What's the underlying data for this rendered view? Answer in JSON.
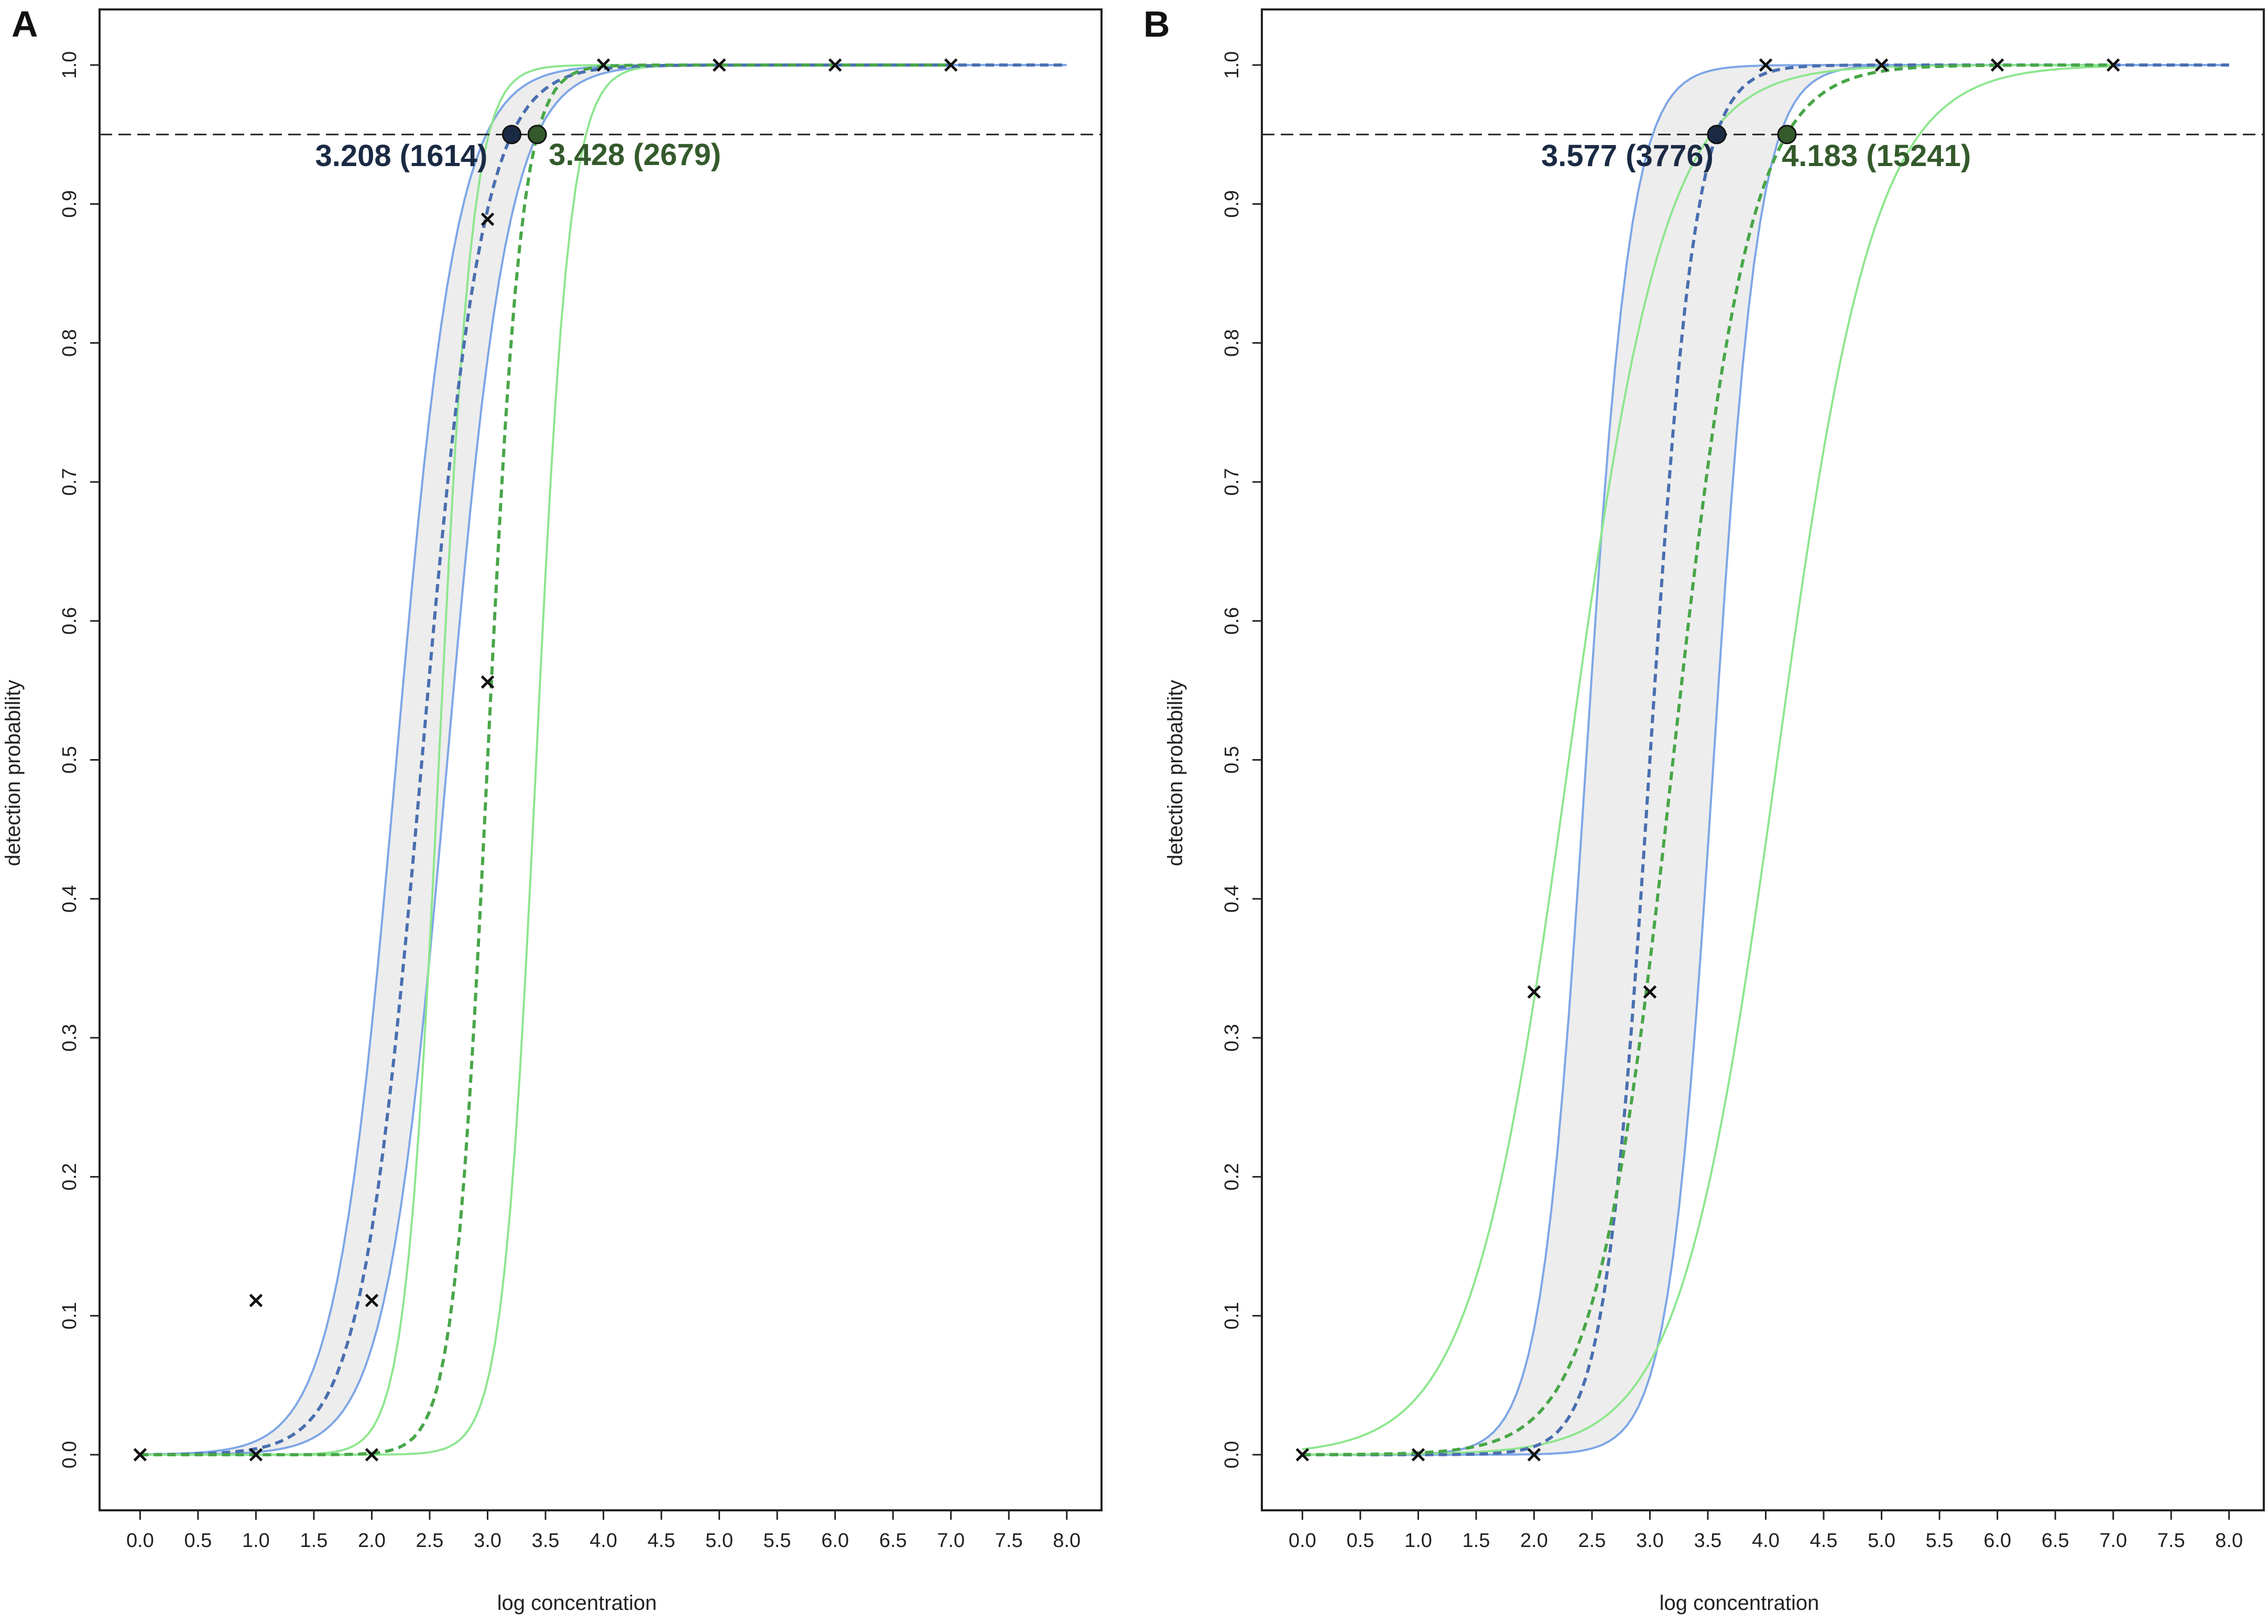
{
  "figure": {
    "colors": {
      "blue": "#7ea6e6",
      "blue_dark": "#4a6fb0",
      "green": "#8ee68e",
      "green_dark": "#48a648",
      "band_fill": "#ededed",
      "annot_blue": "#1b2a44",
      "annot_green": "#345a2c",
      "ref_line": "#222222"
    }
  },
  "chart_data": [
    {
      "type": "line",
      "panel_label": "A",
      "xlabel": "log concentration",
      "ylabel": "detection probability",
      "xlim": [
        -0.35,
        8.3
      ],
      "ylim": [
        -0.04,
        1.04
      ],
      "xticks": [
        "0.0",
        "0.5",
        "1.0",
        "1.5",
        "2.0",
        "2.5",
        "3.0",
        "3.5",
        "4.0",
        "4.5",
        "5.0",
        "5.5",
        "6.0",
        "6.5",
        "7.0",
        "7.5",
        "8.0"
      ],
      "yticks": [
        "0.0",
        "0.1",
        "0.2",
        "0.3",
        "0.4",
        "0.5",
        "0.6",
        "0.7",
        "0.8",
        "0.9",
        "1.0"
      ],
      "reference_line_y": 0.95,
      "observations": [
        {
          "x": 0,
          "y": 0.0
        },
        {
          "x": 1,
          "y": 0.111
        },
        {
          "x": 1,
          "y": 0.0
        },
        {
          "x": 2,
          "y": 0.111
        },
        {
          "x": 2,
          "y": 0.0
        },
        {
          "x": 3,
          "y": 0.889
        },
        {
          "x": 3,
          "y": 0.556
        },
        {
          "x": 4,
          "y": 1.0
        },
        {
          "x": 5,
          "y": 1.0
        },
        {
          "x": 6,
          "y": 1.0
        },
        {
          "x": 7,
          "y": 1.0
        }
      ],
      "series": [
        {
          "name": "blue model",
          "midpoint": 2.433,
          "steepness": 3.8,
          "x_range": [
            0,
            8
          ]
        },
        {
          "name": "green model",
          "midpoint": 3.0,
          "steepness": 6.86,
          "x_range": [
            0,
            7
          ]
        }
      ],
      "lod_points": [
        {
          "x": 3.208,
          "y": 0.95,
          "label": "3.208 (1614)",
          "series": "blue"
        },
        {
          "x": 3.428,
          "y": 0.95,
          "label": "3.428 (2679)",
          "series": "green"
        }
      ]
    },
    {
      "type": "line",
      "panel_label": "B",
      "xlabel": "log concentration",
      "ylabel": "detection probability",
      "xlim": [
        -0.35,
        8.3
      ],
      "ylim": [
        -0.04,
        1.04
      ],
      "xticks": [
        "0.0",
        "0.5",
        "1.0",
        "1.5",
        "2.0",
        "2.5",
        "3.0",
        "3.5",
        "4.0",
        "4.5",
        "5.0",
        "5.5",
        "6.0",
        "6.5",
        "7.0",
        "7.5",
        "8.0"
      ],
      "yticks": [
        "0.0",
        "0.1",
        "0.2",
        "0.3",
        "0.4",
        "0.5",
        "0.6",
        "0.7",
        "0.8",
        "0.9",
        "1.0"
      ],
      "reference_line_y": 0.95,
      "observations": [
        {
          "x": 0,
          "y": 0.0
        },
        {
          "x": 1,
          "y": 0.0
        },
        {
          "x": 2,
          "y": 0.333
        },
        {
          "x": 2,
          "y": 0.0
        },
        {
          "x": 3,
          "y": 0.333
        },
        {
          "x": 4,
          "y": 1.0
        },
        {
          "x": 5,
          "y": 1.0
        },
        {
          "x": 6,
          "y": 1.0
        },
        {
          "x": 7,
          "y": 1.0
        }
      ],
      "series": [
        {
          "name": "blue model",
          "midpoint": 3.0,
          "steepness": 5.13,
          "x_range": [
            0,
            8
          ]
        },
        {
          "name": "green model",
          "midpoint": 3.2,
          "steepness": 3.0,
          "x_range": [
            0,
            7
          ]
        }
      ],
      "lod_points": [
        {
          "x": 3.577,
          "y": 0.95,
          "label": "3.577 (3776)",
          "series": "blue"
        },
        {
          "x": 4.183,
          "y": 0.95,
          "label": "4.183 (15241)",
          "series": "green"
        }
      ]
    }
  ]
}
